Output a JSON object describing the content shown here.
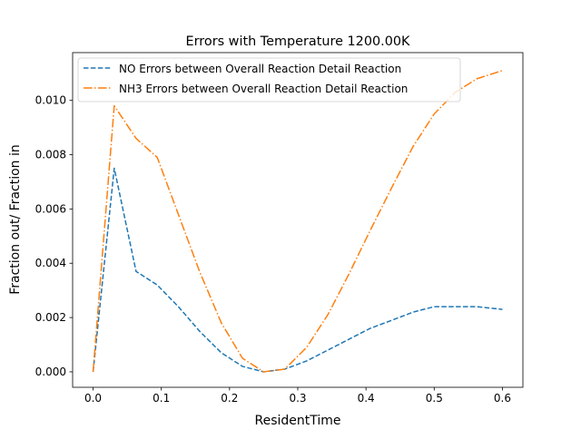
{
  "chart_data": {
    "type": "line",
    "title": "Errors with Temperature 1200.00K",
    "xlabel": "ResidentTime",
    "ylabel": "Fraction out/ Fraction in",
    "xlim": [
      -0.03,
      0.63
    ],
    "ylim": [
      -0.00057,
      0.01176
    ],
    "xticks": [
      0.0,
      0.1,
      0.2,
      0.3,
      0.4,
      0.5,
      0.6
    ],
    "xtick_labels": [
      "0.0",
      "0.1",
      "0.2",
      "0.3",
      "0.4",
      "0.5",
      "0.6"
    ],
    "yticks": [
      0.0,
      0.002,
      0.004,
      0.006,
      0.008,
      0.01
    ],
    "ytick_labels": [
      "0.000",
      "0.002",
      "0.004",
      "0.006",
      "0.008",
      "0.010"
    ],
    "grid": false,
    "legend_position": "top-left",
    "series": [
      {
        "name": "NO Errors between Overall Reaction Detail Reaction",
        "color": "#1f77b4",
        "dash": "dashed",
        "x": [
          0.0,
          0.031,
          0.063,
          0.094,
          0.125,
          0.156,
          0.188,
          0.219,
          0.25,
          0.281,
          0.313,
          0.344,
          0.375,
          0.406,
          0.438,
          0.469,
          0.5,
          0.531,
          0.563,
          0.6
        ],
        "y": [
          0.0,
          0.0075,
          0.0037,
          0.0032,
          0.0024,
          0.0015,
          0.0007,
          0.0002,
          0.0,
          0.0001,
          0.0004,
          0.0008,
          0.0012,
          0.0016,
          0.0019,
          0.0022,
          0.0024,
          0.0024,
          0.0024,
          0.0023
        ]
      },
      {
        "name": "NH3 Errors between Overall Reaction Detail Reaction",
        "color": "#ff7f0e",
        "dash": "dashdot",
        "x": [
          0.0,
          0.031,
          0.063,
          0.094,
          0.125,
          0.156,
          0.188,
          0.219,
          0.25,
          0.281,
          0.313,
          0.344,
          0.375,
          0.406,
          0.438,
          0.469,
          0.5,
          0.531,
          0.563,
          0.6
        ],
        "y": [
          0.0,
          0.0098,
          0.0086,
          0.0079,
          0.0058,
          0.0037,
          0.0018,
          0.0005,
          0.0,
          0.0001,
          0.0009,
          0.0021,
          0.0036,
          0.0052,
          0.0068,
          0.0083,
          0.0095,
          0.0103,
          0.0108,
          0.0111
        ]
      }
    ]
  }
}
